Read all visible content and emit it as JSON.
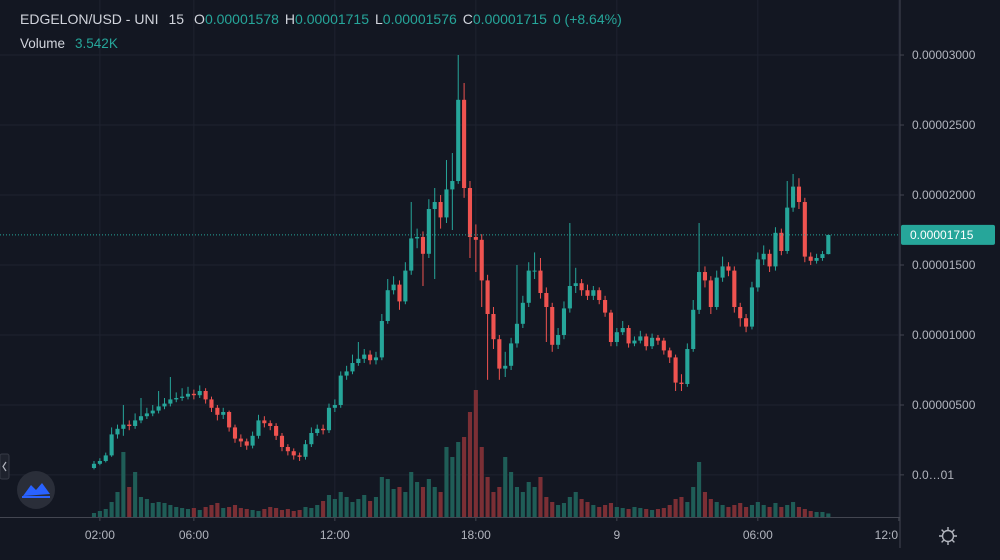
{
  "chart_data": {
    "type": "candlestick",
    "legend": {
      "symbol": "EDGELON/USD - UNI",
      "interval": "15",
      "items": [
        {
          "key": "O",
          "value": "0.00001578"
        },
        {
          "key": "H",
          "value": "0.00001715"
        },
        {
          "key": "L",
          "value": "0.00001576"
        },
        {
          "key": "C",
          "value": "0.00001715"
        }
      ],
      "change": "0",
      "change_pct": "(+8.64%)",
      "volume_title": "Volume",
      "volume_value": "3.542K"
    },
    "colors": {
      "up": "#26a69a",
      "down": "#ef5350",
      "volume_up": "#1f5d57",
      "volume_down": "#7b2f35"
    },
    "grid": true,
    "xlim": [
      -16,
      137.2
    ],
    "xticks": [
      {
        "value": 1,
        "label": "02:00"
      },
      {
        "value": 17,
        "label": "06:00"
      },
      {
        "value": 41,
        "label": "12:00"
      },
      {
        "value": 65,
        "label": "18:00"
      },
      {
        "value": 89,
        "label": "9"
      },
      {
        "value": 113,
        "label": "06:00"
      },
      {
        "value": 137,
        "label": "12:0"
      }
    ],
    "ylim": [
      -3e-06,
      3.393e-05
    ],
    "yticks": [
      {
        "value": 3e-05,
        "label": "0.00003000"
      },
      {
        "value": 2.5e-05,
        "label": "0.00002500"
      },
      {
        "value": 2e-05,
        "label": "0.00002000"
      },
      {
        "value": 1.5e-05,
        "label": "0.00001500"
      },
      {
        "value": 1e-05,
        "label": "0.00001000"
      },
      {
        "value": 5e-06,
        "label": "0.00000500"
      },
      {
        "value": 1e-08,
        "label": "0.0…01"
      }
    ],
    "last_price": {
      "value": 1.715e-05,
      "label": "0.00001715"
    },
    "volume_ylim": [
      0,
      150000
    ],
    "open": [
      5e-07,
      8e-07,
      1e-06,
      1.4e-06,
      2.9e-06,
      3.3e-06,
      3.6e-06,
      3.5e-06,
      3.9e-06,
      4.2e-06,
      4.4e-06,
      4.6e-06,
      4.9e-06,
      5.1e-06,
      5.4e-06,
      5.5e-06,
      5.6e-06,
      5.8e-06,
      5.7e-06,
      6e-06,
      5.4e-06,
      4.8e-06,
      4.3e-06,
      4.5e-06,
      3.4e-06,
      2.6e-06,
      2.4e-06,
      2.1e-06,
      2.8e-06,
      3.9e-06,
      3.7e-06,
      3.5e-06,
      2.8e-06,
      2e-06,
      1.7e-06,
      1.4e-06,
      1.3e-06,
      2.2e-06,
      3e-06,
      3.3e-06,
      3.2e-06,
      4.8e-06,
      5e-06,
      7.1e-06,
      7.4e-06,
      8e-06,
      8.3e-06,
      8.6e-06,
      8.2e-06,
      8.4e-06,
      1.1e-05,
      1.32e-05,
      1.36e-05,
      1.24e-05,
      1.46e-05,
      1.69e-05,
      1.7e-05,
      1.58e-05,
      1.9e-05,
      1.95e-05,
      1.84e-05,
      2.04e-05,
      2.1e-05,
      2.68e-05,
      2.05e-05,
      1.7e-05,
      1.68e-05,
      1.39e-05,
      1.15e-05,
      9.7e-06,
      7.6e-06,
      7.8e-06,
      9.4e-06,
      1.08e-05,
      1.23e-05,
      1.46e-05,
      1.46e-05,
      1.3e-05,
      1.2e-05,
      9.3e-06,
      1e-05,
      1.19e-05,
      1.35e-05,
      1.37e-05,
      1.32e-05,
      1.28e-05,
      1.32e-05,
      1.25e-05,
      1.16e-05,
      9.5e-06,
      1.02e-05,
      1.05e-05,
      9.4e-06,
      9.6e-06,
      9.9e-06,
      9.2e-06,
      9.8e-06,
      9.6e-06,
      8.9e-06,
      8.4e-06,
      6.6e-06,
      6.5e-06,
      9e-06,
      1.18e-05,
      1.45e-05,
      1.39e-05,
      1.2e-05,
      1.41e-05,
      1.49e-05,
      1.46e-05,
      1.2e-05,
      1.12e-05,
      1.06e-05,
      1.34e-05,
      1.54e-05,
      1.58e-05,
      1.49e-05,
      1.73e-05,
      1.6e-05,
      1.91e-05,
      2.06e-05,
      1.95e-05,
      1.56e-05,
      1.53e-05,
      1.55e-05,
      1.578e-05
    ],
    "high": [
      1e-06,
      1.2e-06,
      1.6e-06,
      3.4e-06,
      3.6e-06,
      5e-06,
      3.9e-06,
      4.4e-06,
      5.5e-06,
      4.8e-06,
      5e-06,
      6e-06,
      5.5e-06,
      7e-06,
      5.9e-06,
      6.2e-06,
      6.3e-06,
      6.1e-06,
      6.4e-06,
      6.2e-06,
      5.6e-06,
      5e-06,
      4.8e-06,
      4.6e-06,
      3.6e-06,
      2.9e-06,
      2.6e-06,
      3.1e-06,
      4.3e-06,
      4.2e-06,
      3.9e-06,
      3.7e-06,
      3e-06,
      2.2e-06,
      1.9e-06,
      1.6e-06,
      2.5e-06,
      3.4e-06,
      3.6e-06,
      3.6e-06,
      5.1e-06,
      5.4e-06,
      7.4e-06,
      7.8e-06,
      8.6e-06,
      9.5e-06,
      9e-06,
      8.9e-06,
      8.8e-06,
      1.15e-05,
      1.4e-05,
      1.42e-05,
      1.39e-05,
      1.52e-05,
      1.95e-05,
      1.76e-05,
      1.74e-05,
      1.97e-05,
      2.05e-05,
      2e-05,
      2.25e-05,
      2.3e-05,
      3e-05,
      2.8e-05,
      2.1e-05,
      1.79e-05,
      1.72e-05,
      1.43e-05,
      1.2e-05,
      1e-05,
      8.8e-06,
      9.8e-06,
      1.5e-05,
      1.28e-05,
      1.52e-05,
      1.59e-05,
      1.55e-05,
      1.34e-05,
      1.23e-05,
      1.05e-05,
      1.24e-05,
      1.8e-05,
      1.48e-05,
      1.4e-05,
      1.36e-05,
      1.35e-05,
      1.34e-05,
      1.28e-05,
      1.18e-05,
      1.05e-05,
      1.1e-05,
      1.07e-05,
      9.9e-06,
      1.03e-05,
      1.01e-05,
      1.01e-05,
      1e-05,
      9.8e-06,
      9.1e-06,
      8.6e-06,
      7.2e-06,
      9.4e-06,
      1.25e-05,
      1.8e-05,
      1.49e-05,
      1.42e-05,
      1.46e-05,
      1.56e-05,
      1.52e-05,
      1.49e-05,
      1.23e-05,
      1.15e-05,
      1.38e-05,
      1.59e-05,
      1.64e-05,
      1.61e-05,
      1.77e-05,
      1.76e-05,
      2.1e-05,
      2.15e-05,
      2.12e-05,
      1.98e-05,
      1.59e-05,
      1.58e-05,
      1.6e-05,
      1.715e-05
    ],
    "low": [
      4e-07,
      7e-07,
      9e-07,
      1.3e-06,
      2.6e-06,
      2.8e-06,
      3.2e-06,
      3.3e-06,
      3.7e-06,
      4e-06,
      4.2e-06,
      4.4e-06,
      4.7e-06,
      4.9e-06,
      5.2e-06,
      5.3e-06,
      5.4e-06,
      5.4e-06,
      5.5e-06,
      5.1e-06,
      4.5e-06,
      3.9e-06,
      4e-06,
      3.1e-06,
      2.3e-06,
      2e-06,
      1.8e-06,
      1.9e-06,
      2.6e-06,
      3.4e-06,
      3.2e-06,
      2.5e-06,
      1.7e-06,
      1.4e-06,
      1.1e-06,
      1e-06,
      1.1e-06,
      2e-06,
      2.8e-06,
      2.9e-06,
      3e-06,
      4.5e-06,
      4.8e-06,
      6.8e-06,
      7.2e-06,
      7.8e-06,
      8e-06,
      7.9e-06,
      7.9e-06,
      8.2e-06,
      1.08e-05,
      1.29e-05,
      1.18e-05,
      1.22e-05,
      1.43e-05,
      1.62e-05,
      1.35e-05,
      1.55e-05,
      1.4e-05,
      1.76e-05,
      1.8e-05,
      1.75e-05,
      2.08e-05,
      1.98e-05,
      1.55e-05,
      1.45e-05,
      1.2e-05,
      6.8e-06,
      9e-06,
      6.8e-06,
      7e-06,
      7.5e-06,
      9.1e-06,
      1.05e-05,
      1.2e-05,
      1.4e-05,
      1.26e-05,
      9.5e-06,
      8.8e-06,
      9e-06,
      9.7e-06,
      1.16e-05,
      1.3e-05,
      1.28e-05,
      1.25e-05,
      1.25e-05,
      1.22e-05,
      1.13e-05,
      9.2e-06,
      9.2e-06,
      1e-05,
      9.1e-06,
      9.2e-06,
      9.4e-06,
      8.9e-06,
      9e-06,
      9.3e-06,
      8.6e-06,
      8e-06,
      6e-06,
      6e-06,
      6.3e-06,
      8.8e-06,
      1.15e-05,
      1.34e-05,
      1.15e-05,
      1.18e-05,
      1.38e-05,
      1.42e-05,
      1.16e-05,
      1.06e-05,
      1.02e-05,
      1.04e-05,
      1.31e-05,
      1.5e-05,
      1.45e-05,
      1.46e-05,
      1.57e-05,
      1.58e-05,
      1.88e-05,
      1.9e-05,
      1.52e-05,
      1.5e-05,
      1.51e-05,
      1.53e-05,
      1.576e-05
    ],
    "close": [
      8e-07,
      1e-06,
      1.4e-06,
      2.9e-06,
      3.3e-06,
      3.6e-06,
      3.5e-06,
      3.9e-06,
      4.2e-06,
      4.4e-06,
      4.6e-06,
      4.9e-06,
      5.1e-06,
      5.4e-06,
      5.5e-06,
      5.6e-06,
      5.8e-06,
      5.7e-06,
      6e-06,
      5.4e-06,
      4.8e-06,
      4.3e-06,
      4.5e-06,
      3.4e-06,
      2.6e-06,
      2.4e-06,
      2.1e-06,
      2.8e-06,
      3.9e-06,
      3.7e-06,
      3.5e-06,
      2.8e-06,
      2e-06,
      1.7e-06,
      1.4e-06,
      1.3e-06,
      2.2e-06,
      3e-06,
      3.3e-06,
      3.2e-06,
      4.8e-06,
      5e-06,
      7.1e-06,
      7.4e-06,
      8e-06,
      8.3e-06,
      8.6e-06,
      8.2e-06,
      8.4e-06,
      1.1e-05,
      1.32e-05,
      1.36e-05,
      1.24e-05,
      1.46e-05,
      1.69e-05,
      1.7e-05,
      1.58e-05,
      1.9e-05,
      1.95e-05,
      1.84e-05,
      2.04e-05,
      2.1e-05,
      2.68e-05,
      2.05e-05,
      1.7e-05,
      1.68e-05,
      1.39e-05,
      1.15e-05,
      9.7e-06,
      7.6e-06,
      7.8e-06,
      9.4e-06,
      1.08e-05,
      1.23e-05,
      1.46e-05,
      1.46e-05,
      1.3e-05,
      1.2e-05,
      9.3e-06,
      1e-05,
      1.19e-05,
      1.35e-05,
      1.37e-05,
      1.32e-05,
      1.28e-05,
      1.32e-05,
      1.25e-05,
      1.16e-05,
      9.5e-06,
      1.02e-05,
      1.05e-05,
      9.4e-06,
      9.6e-06,
      9.9e-06,
      9.2e-06,
      9.8e-06,
      9.6e-06,
      8.9e-06,
      8.4e-06,
      6.6e-06,
      6.5e-06,
      9e-06,
      1.18e-05,
      1.45e-05,
      1.39e-05,
      1.2e-05,
      1.41e-05,
      1.49e-05,
      1.46e-05,
      1.2e-05,
      1.12e-05,
      1.06e-05,
      1.34e-05,
      1.54e-05,
      1.58e-05,
      1.49e-05,
      1.73e-05,
      1.6e-05,
      1.91e-05,
      2.06e-05,
      1.95e-05,
      1.56e-05,
      1.53e-05,
      1.55e-05,
      1.578e-05,
      1.715e-05
    ],
    "volume": [
      4000,
      6000,
      8000,
      15000,
      25000,
      65000,
      30000,
      45000,
      20000,
      18000,
      14000,
      15000,
      14000,
      12000,
      10000,
      9000,
      8000,
      9000,
      7000,
      10000,
      12000,
      14000,
      9000,
      10000,
      12000,
      9000,
      8000,
      7000,
      6000,
      8000,
      10000,
      9000,
      7000,
      8000,
      6000,
      7000,
      10000,
      9000,
      12000,
      16000,
      22000,
      18000,
      25000,
      20000,
      15000,
      18000,
      22000,
      16000,
      20000,
      40000,
      38000,
      28000,
      30000,
      25000,
      45000,
      35000,
      30000,
      38000,
      30000,
      25000,
      70000,
      60000,
      75000,
      80000,
      105000,
      127000,
      70000,
      40000,
      25000,
      30000,
      60000,
      45000,
      30000,
      25000,
      35000,
      30000,
      40000,
      20000,
      15000,
      12000,
      14000,
      20000,
      25000,
      18000,
      15000,
      12000,
      10000,
      12000,
      14000,
      10000,
      9000,
      8000,
      10000,
      9000,
      8000,
      7000,
      8000,
      9000,
      12000,
      18000,
      20000,
      15000,
      30000,
      55000,
      25000,
      18000,
      15000,
      12000,
      10000,
      12000,
      14000,
      10000,
      12000,
      15000,
      12000,
      10000,
      14000,
      10000,
      12000,
      15000,
      10000,
      8000,
      6000,
      5000,
      5000,
      3542
    ]
  }
}
